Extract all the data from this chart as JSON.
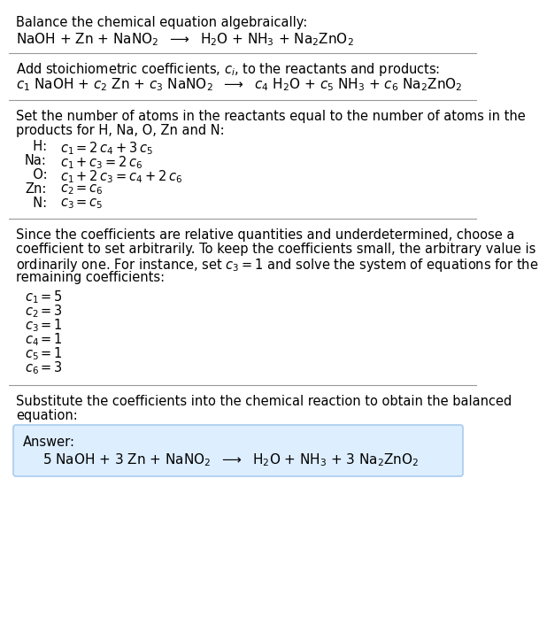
{
  "bg_color": "#ffffff",
  "text_color": "#000000",
  "answer_box_color": "#ddeeff",
  "answer_box_edge": "#aaccee",
  "fs": 10.5,
  "eq1": "NaOH + Zn + NaNO$_2$  $\\longrightarrow$  H$_2$O + NH$_3$ + Na$_2$ZnO$_2$",
  "eq2": "$c_1$ NaOH + $c_2$ Zn + $c_3$ NaNO$_2$  $\\longrightarrow$  $c_4$ H$_2$O + $c_5$ NH$_3$ + $c_6$ Na$_2$ZnO$_2$",
  "atom_labels": [
    "  H:",
    "Na:",
    "  O:",
    "Zn:",
    "  N:"
  ],
  "atom_eqs": [
    "$c_1 = 2\\,c_4 + 3\\,c_5$",
    "$c_1 + c_3 = 2\\,c_6$",
    "$c_1 + 2\\,c_3 = c_4 + 2\\,c_6$",
    "$c_2 = c_6$",
    "$c_3 = c_5$"
  ],
  "block2_lines": [
    "Since the coefficients are relative quantities and underdetermined, choose a",
    "coefficient to set arbitrarily. To keep the coefficients small, the arbitrary value is",
    "ordinarily one. For instance, set $c_3 = 1$ and solve the system of equations for the",
    "remaining coefficients:"
  ],
  "c_eqs": [
    "$c_1 = 5$",
    "$c_2 = 3$",
    "$c_3 = 1$",
    "$c_4 = 1$",
    "$c_5 = 1$",
    "$c_6 = 3$"
  ],
  "answer_eq": "5 NaOH + 3 Zn + NaNO$_2$  $\\longrightarrow$  H$_2$O + NH$_3$ + 3 Na$_2$ZnO$_2$"
}
